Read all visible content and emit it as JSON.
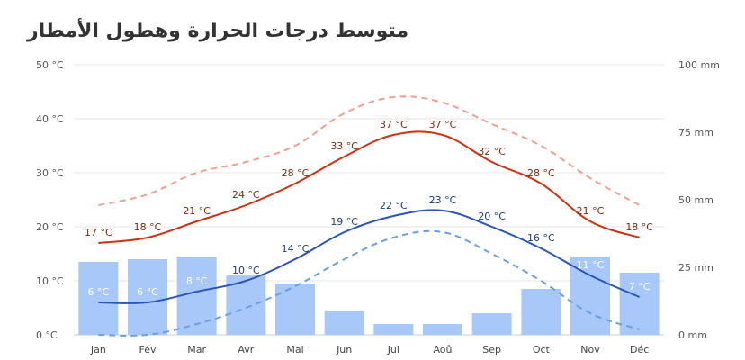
{
  "title": "متوسط درجات الحرارة وهطول الأمطار",
  "chart_data": {
    "type": "bar+line",
    "categories": [
      "Jan",
      "Fév",
      "Mar",
      "Avr",
      "Mai",
      "Jun",
      "Jul",
      "Aoû",
      "Sep",
      "Oct",
      "Nov",
      "Déc"
    ],
    "y_left": {
      "ticks": [
        "0 °C",
        "10 °C",
        "20 °C",
        "30 °C",
        "40 °C",
        "50 °C"
      ],
      "range": [
        0,
        50
      ],
      "unit": "°C"
    },
    "y_right": {
      "ticks": [
        "0 mm",
        "25 mm",
        "50 mm",
        "75 mm",
        "100 mm"
      ],
      "range": [
        0,
        100
      ],
      "unit": "mm"
    },
    "grid": true,
    "series": [
      {
        "kind": "bar",
        "axis": "right",
        "color": "#a9c8fa",
        "values": [
          27,
          28,
          29,
          22,
          19,
          9,
          4,
          4,
          8,
          17,
          29,
          23
        ]
      },
      {
        "kind": "line",
        "axis": "left",
        "color": "#cc3311",
        "dash": false,
        "labeled": true,
        "values": [
          17,
          18,
          21,
          24,
          28,
          33,
          37,
          37,
          32,
          28,
          21,
          18
        ]
      },
      {
        "kind": "line",
        "axis": "left",
        "color": "#2a55b5",
        "dash": false,
        "labeled": true,
        "values": [
          6,
          6,
          8,
          10,
          14,
          19,
          22,
          23,
          20,
          16,
          11,
          7
        ]
      },
      {
        "kind": "line",
        "axis": "left",
        "color": "#f0a090",
        "dash": true,
        "labeled": false,
        "values": [
          24,
          26,
          30,
          32,
          35,
          41,
          44,
          43,
          39,
          35,
          29,
          24
        ]
      },
      {
        "kind": "line",
        "axis": "left",
        "color": "#6aa0e0",
        "dash": true,
        "labeled": false,
        "values": [
          0,
          0,
          2,
          5,
          9,
          14,
          18,
          19,
          15,
          10,
          4,
          1
        ]
      }
    ],
    "label_unit": "°C"
  }
}
